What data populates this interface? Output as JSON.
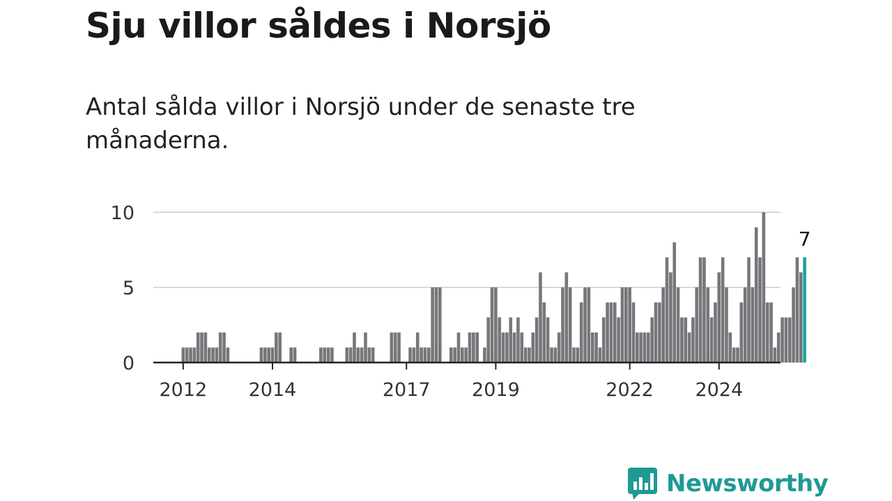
{
  "title": "Sju villor såldes i Norsjö",
  "subtitle": "Antal sålda villor i Norsjö under de senaste tre månaderna.",
  "brand": {
    "name": "Newsworthy",
    "color": "#1f9a94",
    "icon": "bar-chart-speech-bubble-icon"
  },
  "colors": {
    "bar": "#76767b",
    "highlight": "#1aa59b",
    "grid": "#d9d9d9",
    "axis": "#222222"
  },
  "chart_data": {
    "type": "bar",
    "x_type": "date-monthly",
    "start": "2011-12",
    "frequency": "monthly",
    "xlabel": "",
    "ylabel": "",
    "ylim": [
      0,
      10
    ],
    "yticks": [
      0,
      5,
      10
    ],
    "x_tick_labels": [
      "2012",
      "2014",
      "2017",
      "2019",
      "2022",
      "2024"
    ],
    "grid": true,
    "legend": "none",
    "highlight_last": true,
    "last_value_label": "7",
    "values": [
      0,
      1,
      1,
      1,
      1,
      2,
      2,
      2,
      1,
      1,
      1,
      2,
      2,
      1,
      0,
      0,
      0,
      0,
      0,
      0,
      0,
      0,
      1,
      1,
      1,
      1,
      2,
      2,
      0,
      0,
      1,
      1,
      0,
      0,
      0,
      0,
      0,
      0,
      1,
      1,
      1,
      1,
      0,
      0,
      0,
      1,
      1,
      2,
      1,
      1,
      2,
      1,
      1,
      0,
      0,
      0,
      0,
      2,
      2,
      2,
      0,
      0,
      1,
      1,
      2,
      1,
      1,
      1,
      5,
      5,
      5,
      0,
      0,
      1,
      1,
      2,
      1,
      1,
      2,
      2,
      2,
      0,
      1,
      3,
      5,
      5,
      3,
      2,
      2,
      3,
      2,
      3,
      2,
      1,
      1,
      2,
      3,
      6,
      4,
      3,
      1,
      1,
      2,
      5,
      6,
      5,
      1,
      1,
      4,
      5,
      5,
      2,
      2,
      1,
      3,
      4,
      4,
      4,
      3,
      5,
      5,
      5,
      4,
      2,
      2,
      2,
      2,
      3,
      4,
      4,
      5,
      7,
      6,
      8,
      5,
      3,
      3,
      2,
      3,
      5,
      7,
      7,
      5,
      3,
      4,
      6,
      7,
      5,
      2,
      1,
      1,
      4,
      5,
      7,
      5,
      9,
      7,
      10,
      4,
      4,
      1,
      2,
      3,
      3,
      3,
      5,
      7,
      6,
      7
    ]
  }
}
